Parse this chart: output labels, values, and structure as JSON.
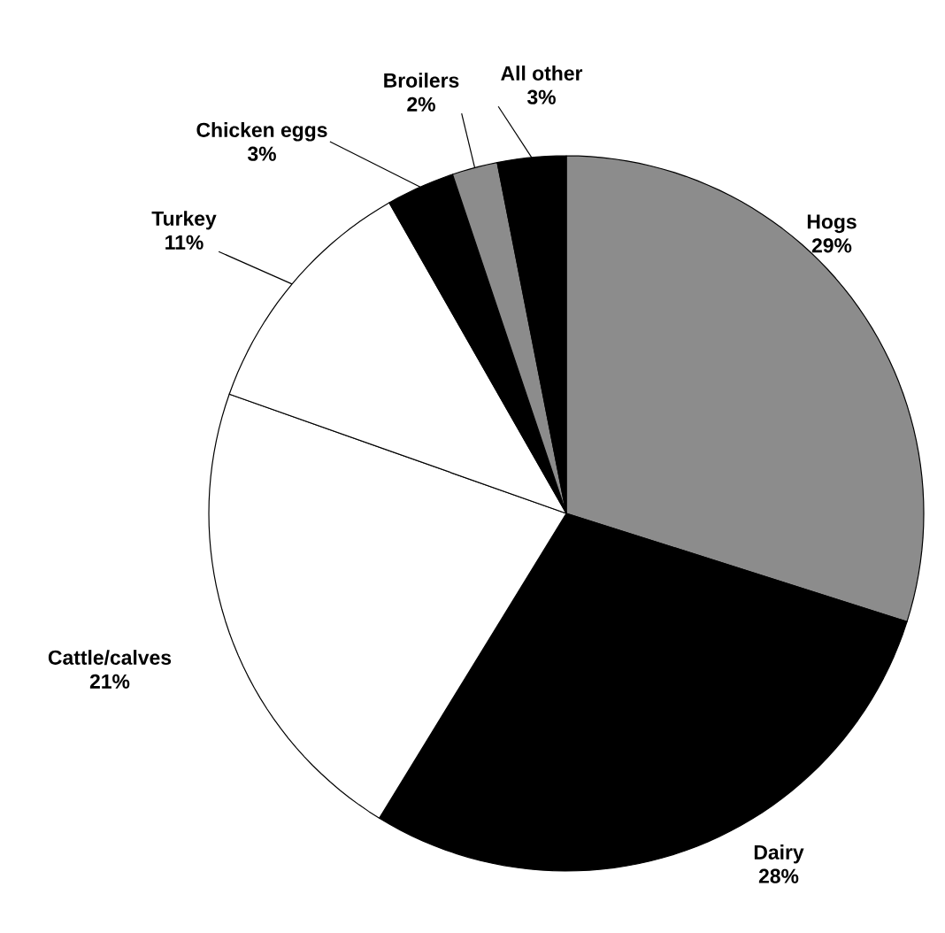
{
  "chart_data": {
    "type": "pie",
    "categories": [
      "Hogs",
      "Dairy",
      "Cattle/calves",
      "Turkey",
      "Chicken eggs",
      "Broilers",
      "All other"
    ],
    "values": [
      29,
      28,
      21,
      11,
      3,
      2,
      3
    ],
    "value_labels": [
      "29%",
      "28%",
      "21%",
      "11%",
      "3%",
      "2%",
      "3%"
    ],
    "colors": [
      "#8c8c8c",
      "#000000",
      "#ffffff",
      "#ffffff",
      "#000000",
      "#8c8c8c",
      "#000000"
    ]
  }
}
